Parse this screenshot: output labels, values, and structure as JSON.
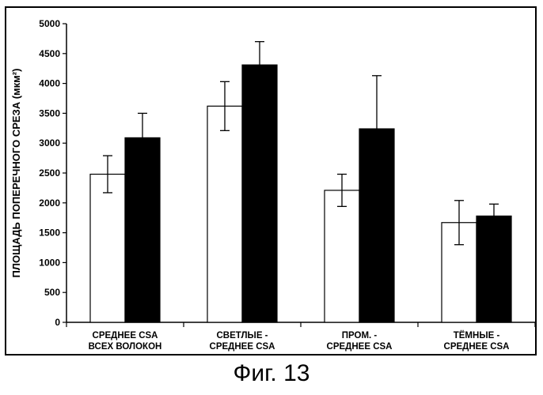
{
  "caption": "Фиг. 13",
  "chart_data": {
    "type": "bar",
    "ylabel": "ПЛОЩАДЬ ПОПЕРЕЧНОГО СРЕЗА (мкм²)",
    "xlabel": "",
    "ylim": [
      0,
      5000
    ],
    "yticks": [
      0,
      500,
      1000,
      1500,
      2000,
      2500,
      3000,
      3500,
      4000,
      4500,
      5000
    ],
    "grid": false,
    "categories": [
      [
        "СРЕДНЕЕ CSA",
        "ВСЕХ ВОЛОКОН"
      ],
      [
        "СВЕТЛЫЕ -",
        "СРЕДНЕЕ CSA"
      ],
      [
        "ПРОМ. -",
        "СРЕДНЕЕ CSA"
      ],
      [
        "ТЁМНЫЕ -",
        "СРЕДНЕЕ CSA"
      ]
    ],
    "series": [
      {
        "color": "#ffffff",
        "values": [
          2480,
          3620,
          2210,
          1670
        ],
        "errors": [
          310,
          410,
          270,
          370
        ]
      },
      {
        "color": "#000000",
        "values": [
          3090,
          4310,
          3240,
          1780
        ],
        "errors": [
          410,
          390,
          890,
          200
        ]
      }
    ]
  }
}
